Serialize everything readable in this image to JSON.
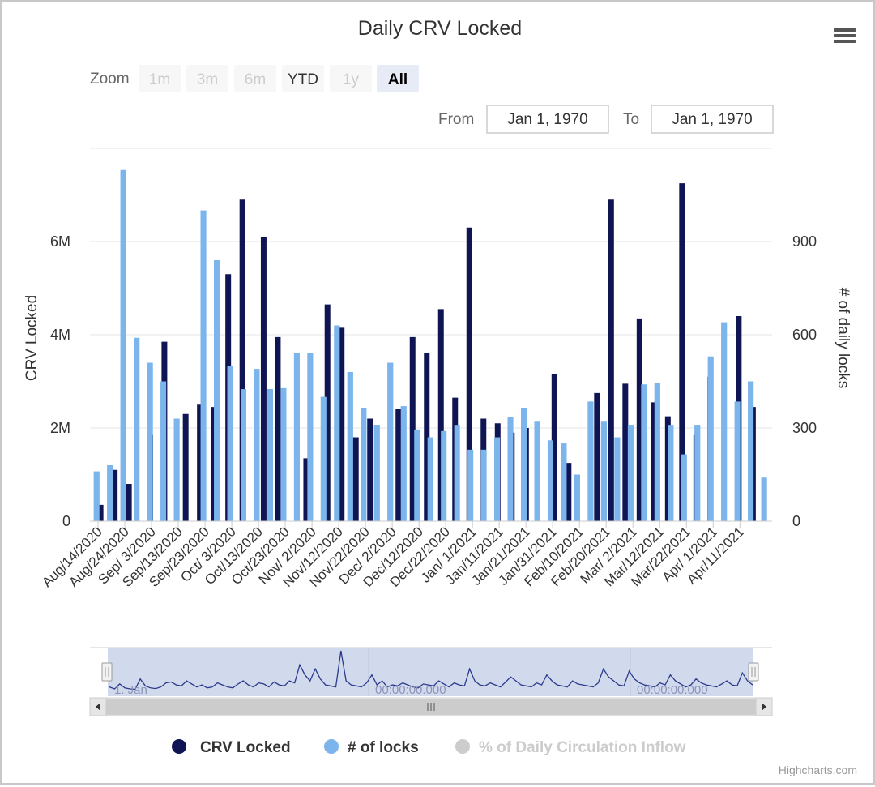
{
  "chart_data": {
    "type": "bar",
    "title": "Daily CRV Locked",
    "x_tick_labels": [
      "Aug/14/2020",
      "Aug/24/2020",
      "Sep/ 3/2020",
      "Sep/13/2020",
      "Sep/23/2020",
      "Oct/ 3/2020",
      "Oct/13/2020",
      "Oct/23/2020",
      "Nov/ 2/2020",
      "Nov/12/2020",
      "Nov/22/2020",
      "Dec/ 2/2020",
      "Dec/12/2020",
      "Dec/22/2020",
      "Jan/ 1/2021",
      "Jan/11/2021",
      "Jan/21/2021",
      "Jan/31/2021",
      "Feb/10/2021",
      "Feb/20/2021",
      "Mar/ 2/2021",
      "Mar/12/2021",
      "Mar/22/2021",
      "Apr/ 1/2021",
      "Apr/11/2021"
    ],
    "y_left": {
      "label": "CRV Locked",
      "ticks": [
        "0",
        "2M",
        "4M",
        "6M"
      ],
      "range": [
        0,
        8000000
      ]
    },
    "y_right": {
      "label": "# of daily locks",
      "ticks": [
        "0",
        "300",
        "600",
        "900"
      ],
      "range": [
        0,
        1200
      ]
    },
    "series": [
      {
        "name": "CRV Locked",
        "color": "#0f1452",
        "axis": "left",
        "values": [
          0,
          350000,
          0,
          1100000,
          0,
          800000,
          0,
          0,
          1850000,
          0,
          3850000,
          0,
          0,
          2300000,
          0,
          2500000,
          0,
          2450000,
          0,
          5300000,
          0,
          6900000,
          0,
          0,
          6100000,
          0,
          3950000,
          0,
          0,
          0,
          1350000,
          0,
          0,
          4650000,
          0,
          4150000,
          0,
          1800000,
          0,
          2200000,
          0,
          0,
          0,
          2400000,
          0,
          3950000,
          0,
          3600000,
          0,
          4550000,
          0,
          2650000,
          0,
          6300000,
          0,
          2200000,
          0,
          2100000,
          0,
          1900000,
          0,
          2000000,
          0,
          0,
          0,
          3150000,
          0,
          1250000,
          0,
          0,
          0,
          2750000,
          0,
          6900000,
          0,
          2950000,
          0,
          4350000,
          0,
          2550000,
          0,
          2250000,
          0,
          7250000,
          0,
          1850000,
          0,
          3100000,
          0,
          0,
          0,
          4400000,
          0,
          2450000,
          0,
          0
        ]
      },
      {
        "name": "# of locks",
        "color": "#7cb5ec",
        "axis": "right",
        "values": [
          160,
          180,
          1130,
          590,
          510,
          450,
          330,
          0,
          1000,
          840,
          500,
          425,
          490,
          425,
          428,
          540,
          540,
          400,
          630,
          480,
          365,
          310,
          510,
          370,
          295,
          270,
          290,
          310,
          230,
          230,
          270,
          335,
          365,
          320,
          260,
          250,
          150,
          385,
          320,
          270,
          310,
          440,
          445,
          310,
          215,
          310,
          530,
          640,
          385,
          450,
          140
        ]
      },
      {
        "name": "% of Daily Circulation Inflow",
        "color": "#cccccc",
        "axis": "left",
        "visible": false,
        "values": []
      }
    ],
    "legend_position": "bottom-center"
  },
  "toolbar": {
    "zoom_label": "Zoom",
    "buttons": [
      "1m",
      "3m",
      "6m",
      "YTD",
      "1y",
      "All"
    ],
    "selected": "All",
    "enabled": [
      "YTD",
      "All"
    ],
    "from_label": "From",
    "from_value": "Jan 1, 1970",
    "to_label": "To",
    "to_value": "Jan 1, 1970"
  },
  "navigator": {
    "labels": [
      "1. Jan",
      "00:00:00.000",
      "00:00:00.000"
    ],
    "series": [
      30,
      20,
      45,
      25,
      20,
      18,
      70,
      35,
      25,
      22,
      30,
      50,
      55,
      40,
      35,
      60,
      45,
      30,
      40,
      25,
      30,
      50,
      40,
      30,
      25,
      45,
      60,
      40,
      30,
      50,
      45,
      30,
      55,
      40,
      35,
      60,
      50,
      140,
      90,
      60,
      120,
      70,
      40,
      35,
      30,
      210,
      60,
      40,
      35,
      30,
      50,
      90,
      40,
      60,
      30,
      40,
      35,
      50,
      40,
      30,
      25,
      45,
      40,
      35,
      60,
      45,
      30,
      50,
      40,
      35,
      120,
      60,
      40,
      35,
      50,
      40,
      30,
      55,
      80,
      60,
      40,
      35,
      30,
      50,
      40,
      90,
      60,
      40,
      35,
      30,
      60,
      45,
      40,
      35,
      30,
      50,
      120,
      80,
      60,
      40,
      35,
      110,
      70,
      50,
      40,
      35,
      30,
      50,
      40,
      90,
      60,
      45,
      30,
      40,
      70,
      50,
      40,
      35,
      30,
      45,
      60,
      40,
      35,
      100,
      60,
      40
    ]
  },
  "credits": "Highcharts.com",
  "colors": {
    "crv": "#0f1452",
    "locks": "#7cb5ec",
    "inflow": "#cccccc"
  }
}
